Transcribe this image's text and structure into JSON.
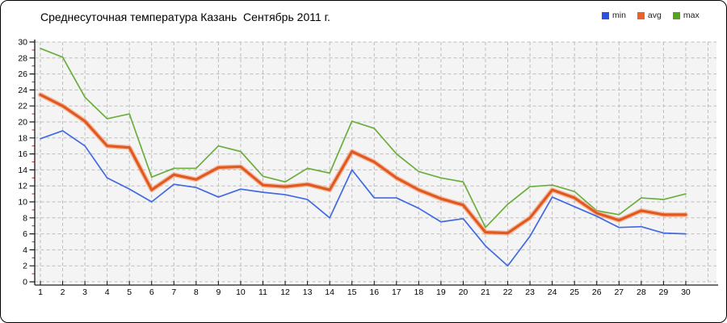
{
  "title": "Среднесуточная температура Казань  Сентябрь 2011 г.",
  "legend": [
    {
      "label": "min",
      "color": "#2c50e2"
    },
    {
      "label": "avg",
      "color": "#e8622a"
    },
    {
      "label": "max",
      "color": "#54a41f"
    }
  ],
  "chart_data": {
    "type": "line",
    "title": "Среднесуточная температура Казань  Сентябрь 2011 г.",
    "xlabel": "",
    "ylabel": "",
    "x": [
      1,
      2,
      3,
      4,
      5,
      6,
      7,
      8,
      9,
      10,
      11,
      12,
      13,
      14,
      15,
      16,
      17,
      18,
      19,
      20,
      21,
      22,
      23,
      24,
      25,
      26,
      27,
      28,
      29,
      30
    ],
    "ylim": [
      0,
      30
    ],
    "ytick_step": 2,
    "grid": true,
    "legend_position": "top-right",
    "series": [
      {
        "name": "min",
        "color": "#4169e1",
        "width": 1.7,
        "values": [
          17.9,
          18.9,
          17.0,
          13.0,
          11.6,
          10.0,
          12.2,
          11.8,
          10.6,
          11.6,
          11.2,
          10.9,
          10.3,
          8.0,
          14.0,
          10.5,
          10.5,
          9.2,
          7.5,
          7.9,
          4.5,
          2.0,
          5.7,
          10.6,
          9.4,
          8.2,
          6.8,
          6.9,
          6.1,
          6.0
        ]
      },
      {
        "name": "avg",
        "color": "#e2591f",
        "width": 3.2,
        "halo": true,
        "values": [
          23.4,
          22.0,
          20.1,
          17.0,
          16.8,
          11.5,
          13.4,
          12.8,
          14.3,
          14.4,
          12.1,
          11.9,
          12.2,
          11.5,
          16.3,
          15.0,
          13.0,
          11.5,
          10.4,
          9.6,
          6.2,
          6.1,
          8.0,
          11.5,
          10.5,
          8.6,
          7.7,
          8.9,
          8.4,
          8.4
        ]
      },
      {
        "name": "max",
        "color": "#6cae3e",
        "width": 1.7,
        "values": [
          29.2,
          28.1,
          23.1,
          20.4,
          21.0,
          13.1,
          14.2,
          14.2,
          17.0,
          16.3,
          13.2,
          12.5,
          14.2,
          13.6,
          20.1,
          19.2,
          16.0,
          13.8,
          13.0,
          12.5,
          6.8,
          9.7,
          11.9,
          12.1,
          11.3,
          8.9,
          8.4,
          10.5,
          10.3,
          11.0
        ]
      }
    ],
    "style": {
      "plot_bg": "#f4f4f4",
      "grid_color": "#bdbdbd",
      "axis_color": "#1a1a1a",
      "minor_tick_color": "#d03030",
      "avg_halo_color": "rgba(243,146,100,0.55)"
    }
  }
}
